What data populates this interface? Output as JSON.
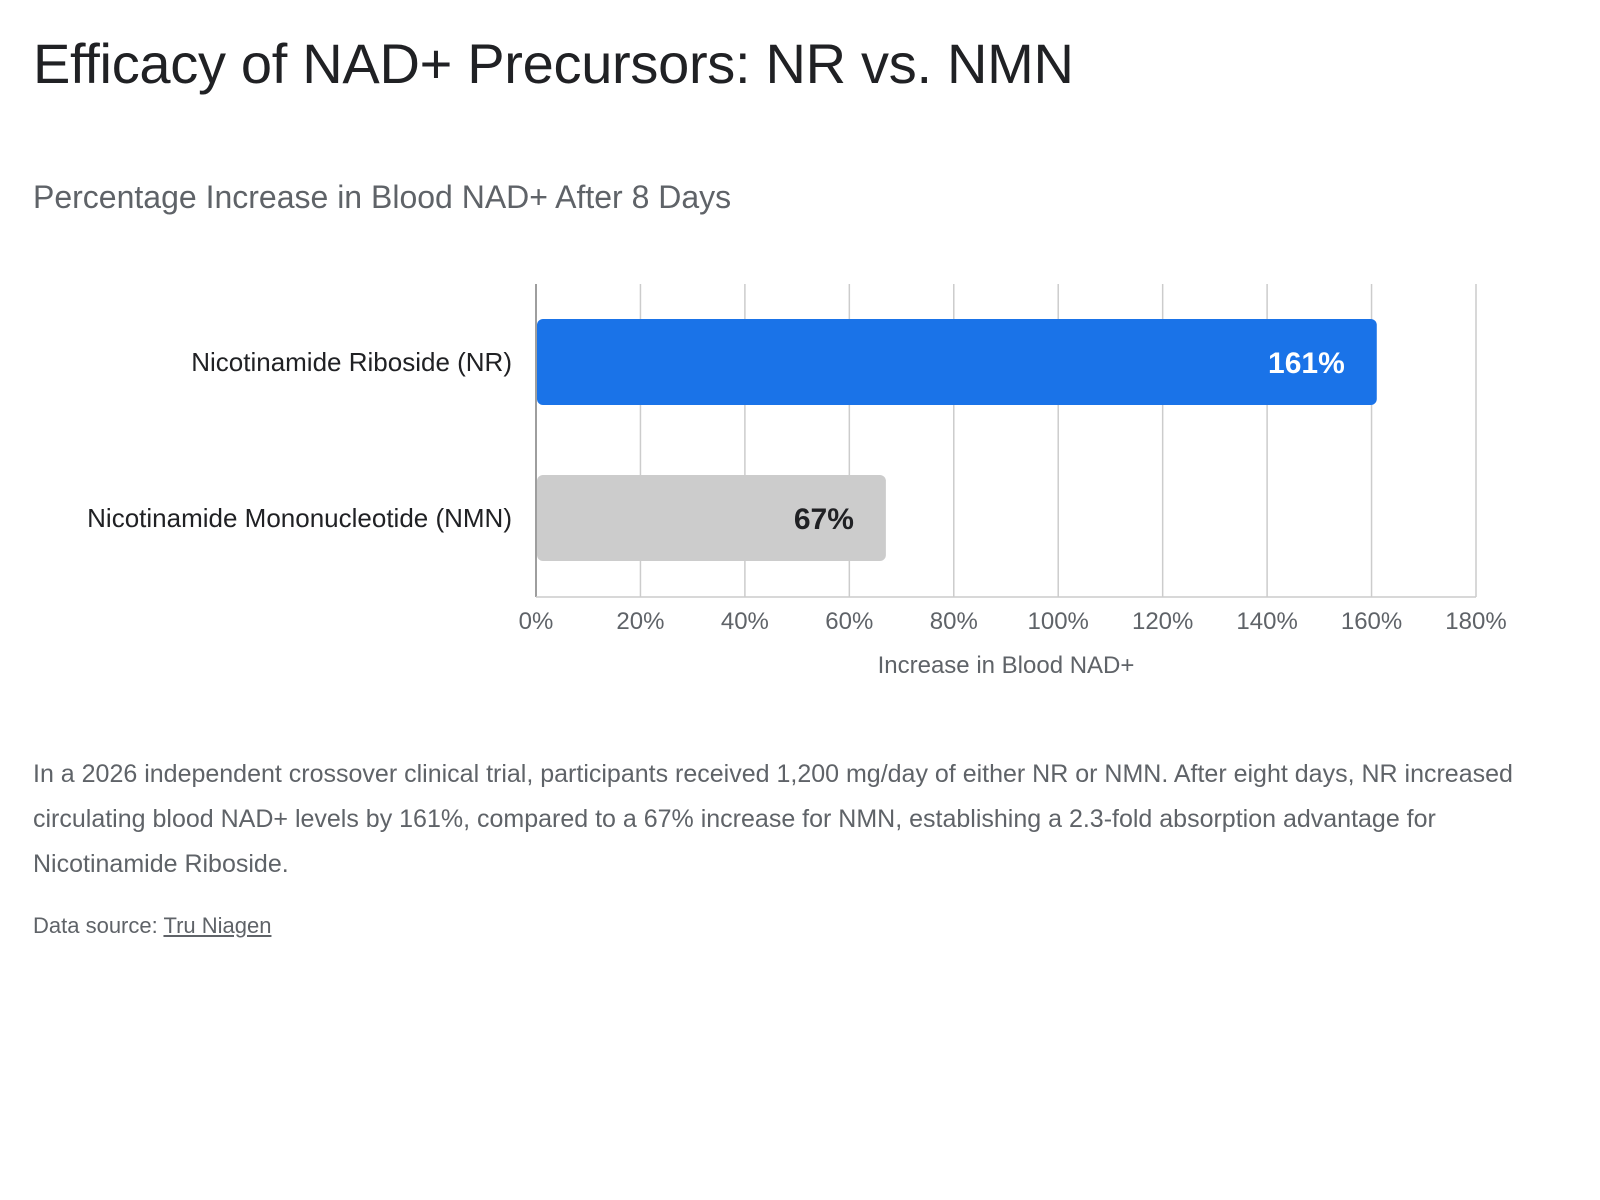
{
  "page": {
    "title": "Efficacy of NAD+ Precursors: NR vs. NMN",
    "subtitle": "Percentage Increase in Blood NAD+ After 8 Days",
    "description": "In a 2026 independent crossover clinical trial, participants received 1,200 mg/day of either NR or NMN. After eight days, NR increased circulating blood NAD+ levels by 161%, compared to a 67% increase for NMN, establishing a 2.3-fold absorption advantage for Nicotinamide Riboside.",
    "source_prefix": "Data source: ",
    "source_link": "Tru Niagen"
  },
  "chart_data": {
    "type": "bar",
    "orientation": "horizontal",
    "title": "Percentage Increase in Blood NAD+ After 8 Days",
    "xlabel": "Increase in Blood NAD+",
    "ylabel": "",
    "categories": [
      "Nicotinamide Riboside (NR)",
      "Nicotinamide Mononucleotide (NMN)"
    ],
    "values": [
      161,
      67
    ],
    "value_labels": [
      "161%",
      "67%"
    ],
    "bar_colors": [
      "#1a73e8",
      "#cccccc"
    ],
    "value_label_colors": [
      "#ffffff",
      "#202124"
    ],
    "xlim": [
      0,
      180
    ],
    "xticks": [
      0,
      20,
      40,
      60,
      80,
      100,
      120,
      140,
      160,
      180
    ],
    "xtick_labels": [
      "0%",
      "20%",
      "40%",
      "60%",
      "80%",
      "100%",
      "120%",
      "140%",
      "160%",
      "180%"
    ],
    "grid": true,
    "legend": "none"
  }
}
